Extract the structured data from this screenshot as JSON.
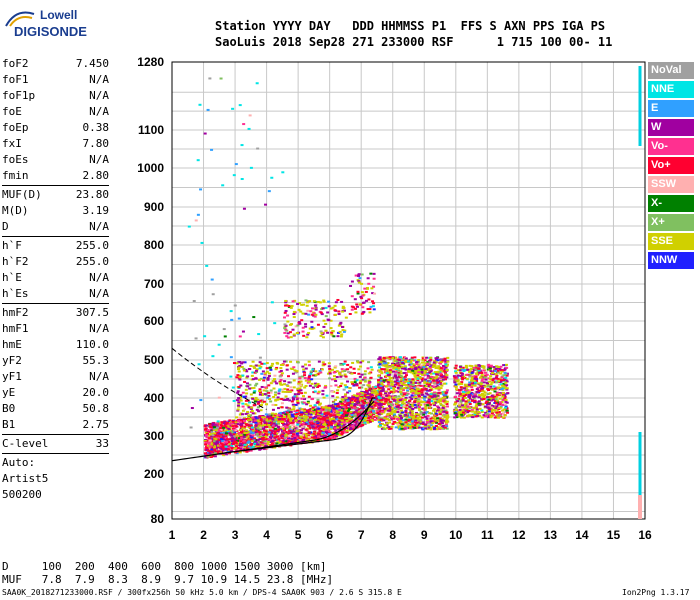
{
  "logo": {
    "line1": "Lowell",
    "line2": "DIGISONDE"
  },
  "header": {
    "row1": "Station YYYY DAY   DDD HHMMSS P1  FFS S AXN PPS IGA PS",
    "row2": "SaoLuis 2018 Sep28 271 233000 RSF      1 715 100 00- 11"
  },
  "params": [
    {
      "k": "foF2",
      "v": "7.450"
    },
    {
      "k": "foF1",
      "v": "N/A"
    },
    {
      "k": "foF1p",
      "v": "N/A"
    },
    {
      "k": "foE",
      "v": "N/A"
    },
    {
      "k": "foEp",
      "v": "0.38"
    },
    {
      "k": "fxI",
      "v": "7.80"
    },
    {
      "k": "foEs",
      "v": "N/A"
    },
    {
      "k": "fmin",
      "v": "2.80"
    },
    {
      "k": "MUF(D)",
      "v": "23.80",
      "sep": true
    },
    {
      "k": "M(D)",
      "v": "3.19"
    },
    {
      "k": "D",
      "v": "N/A"
    },
    {
      "k": "h`F",
      "v": "255.0",
      "sep": true
    },
    {
      "k": "h`F2",
      "v": "255.0"
    },
    {
      "k": "h`E",
      "v": "N/A"
    },
    {
      "k": "h`Es",
      "v": "N/A"
    },
    {
      "k": "hmF2",
      "v": "307.5",
      "sep": true
    },
    {
      "k": "hmF1",
      "v": "N/A"
    },
    {
      "k": "hmE",
      "v": "110.0"
    },
    {
      "k": "yF2",
      "v": "55.3"
    },
    {
      "k": "yF1",
      "v": "N/A"
    },
    {
      "k": "yE",
      "v": "20.0"
    },
    {
      "k": "B0",
      "v": "50.8"
    },
    {
      "k": "B1",
      "v": "2.75"
    },
    {
      "k": "C-level",
      "v": "33",
      "sep": true
    }
  ],
  "auto": {
    "line1": "Auto:",
    "line2": "Artist5",
    "line3": "500200"
  },
  "legend": [
    {
      "label": "NoVal",
      "color": "#a0a0a0"
    },
    {
      "label": "NNE",
      "color": "#00e5e5"
    },
    {
      "label": "E",
      "color": "#30a0ff"
    },
    {
      "label": "W",
      "color": "#a000a0"
    },
    {
      "label": "Vo-",
      "color": "#ff3090"
    },
    {
      "label": "Vo+",
      "color": "#ff0030"
    },
    {
      "label": "SSW",
      "color": "#ffb0b0"
    },
    {
      "label": "X-",
      "color": "#008000"
    },
    {
      "label": "X+",
      "color": "#80c060"
    },
    {
      "label": "SSE",
      "color": "#d0d000"
    },
    {
      "label": "NNW",
      "color": "#2020ff"
    }
  ],
  "axes": {
    "x_ticks": [
      "1",
      "2",
      "3",
      "4",
      "5",
      "6",
      "7",
      "8",
      "9",
      "10",
      "11",
      "12",
      "13",
      "14",
      "15",
      "16"
    ],
    "y_ticks": [
      "80",
      "200",
      "300",
      "400",
      "500",
      "600",
      "700",
      "800",
      "900",
      "1000",
      "1100",
      "1280"
    ]
  },
  "footer": {
    "d_row": "D     100  200  400  600  800 1000 1500 3000 [km]",
    "muf_row": "MUF   7.8  7.9  8.3  8.9  9.7 10.9 14.5 23.8 [MHz]",
    "bottom_left": "SAA0K_2018271233000.RSF / 300fx256h 50 kHz 5.0 km / DPS-4 SAA0K 903 / 2.6 S 315.8 E",
    "bottom_right": "Ion2Png 1.3.17"
  }
}
